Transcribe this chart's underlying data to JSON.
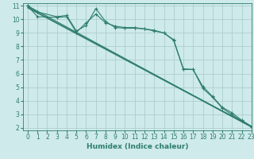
{
  "background_color": "#ceeaea",
  "grid_color": "#aecece",
  "line_color": "#2e7d6e",
  "xlabel": "Humidex (Indice chaleur)",
  "xlabel_fontsize": 6.5,
  "xlim": [
    -0.5,
    23
  ],
  "ylim": [
    1.8,
    11.2
  ],
  "xticks": [
    0,
    1,
    2,
    3,
    4,
    5,
    6,
    7,
    8,
    9,
    10,
    11,
    12,
    13,
    14,
    15,
    16,
    17,
    18,
    19,
    20,
    21,
    22,
    23
  ],
  "yticks": [
    2,
    3,
    4,
    5,
    6,
    7,
    8,
    9,
    10,
    11
  ],
  "tick_fontsize": 5.5,
  "line1_x": [
    0,
    1,
    3,
    4,
    5,
    6,
    7,
    8,
    9,
    10,
    11,
    12,
    13,
    14,
    15,
    16,
    17,
    18,
    19,
    20,
    21,
    22,
    23
  ],
  "line1_y": [
    11.0,
    10.55,
    10.2,
    10.3,
    9.15,
    9.55,
    10.8,
    9.85,
    9.4,
    9.35,
    9.35,
    9.3,
    9.15,
    9.0,
    8.5,
    6.35,
    6.3,
    5.05,
    4.3,
    3.5,
    3.1,
    2.55,
    2.1
  ],
  "line2_x": [
    0,
    1,
    3,
    4,
    5,
    6,
    7,
    8,
    9,
    10,
    11,
    12,
    13,
    14,
    15,
    16,
    17,
    18,
    19,
    20,
    21,
    22,
    23
  ],
  "line2_y": [
    11.0,
    10.2,
    10.15,
    10.2,
    9.05,
    9.75,
    10.4,
    9.75,
    9.5,
    9.4,
    9.4,
    9.3,
    9.2,
    9.0,
    8.45,
    6.3,
    6.3,
    4.9,
    4.25,
    3.45,
    2.95,
    2.5,
    2.05
  ],
  "line3_x": [
    0,
    23
  ],
  "line3_y": [
    11.0,
    2.05
  ],
  "line4_x": [
    0,
    23
  ],
  "line4_y": [
    10.9,
    2.1
  ],
  "line5_x": [
    0,
    23
  ],
  "line5_y": [
    10.85,
    2.05
  ]
}
